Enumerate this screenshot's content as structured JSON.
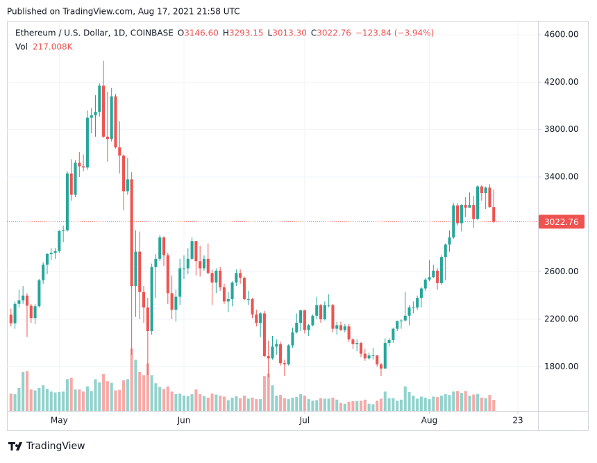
{
  "header": {
    "published": "Published on TradingView.com, Aug 17, 2021 21:58 UTC",
    "legend": [
      {
        "key": "O",
        "value": "3146.60"
      },
      {
        "key": "H",
        "value": "3293.15"
      },
      {
        "key": "L",
        "value": "3013.30"
      },
      {
        "key": "C",
        "value": "3022.76"
      }
    ],
    "change": "−123.84 (−3.94%)",
    "vol_key": "Vol",
    "vol_value": "217.008K"
  },
  "footer": {
    "brand": "TradingView"
  },
  "chart_data": {
    "type": "candlestick",
    "title": "Ethereum / U.S. Dollar, 1D, COINBASE",
    "up_color": "#26a69a",
    "down_color": "#ef5350",
    "grid": true,
    "x": [
      "2021-04-19",
      "2021-04-20",
      "2021-04-21",
      "2021-04-22",
      "2021-04-23",
      "2021-04-24",
      "2021-04-25",
      "2021-04-26",
      "2021-04-27",
      "2021-04-28",
      "2021-04-29",
      "2021-04-30",
      "2021-05-01",
      "2021-05-02",
      "2021-05-03",
      "2021-05-04",
      "2021-05-05",
      "2021-05-06",
      "2021-05-07",
      "2021-05-08",
      "2021-05-09",
      "2021-05-10",
      "2021-05-11",
      "2021-05-12",
      "2021-05-13",
      "2021-05-14",
      "2021-05-15",
      "2021-05-16",
      "2021-05-17",
      "2021-05-18",
      "2021-05-19",
      "2021-05-20",
      "2021-05-21",
      "2021-05-22",
      "2021-05-23",
      "2021-05-24",
      "2021-05-25",
      "2021-05-26",
      "2021-05-27",
      "2021-05-28",
      "2021-05-29",
      "2021-05-30",
      "2021-05-31",
      "2021-06-01",
      "2021-06-02",
      "2021-06-03",
      "2021-06-04",
      "2021-06-05",
      "2021-06-06",
      "2021-06-07",
      "2021-06-08",
      "2021-06-09",
      "2021-06-10",
      "2021-06-11",
      "2021-06-12",
      "2021-06-13",
      "2021-06-14",
      "2021-06-15",
      "2021-06-16",
      "2021-06-17",
      "2021-06-18",
      "2021-06-19",
      "2021-06-20",
      "2021-06-21",
      "2021-06-22",
      "2021-06-23",
      "2021-06-24",
      "2021-06-25",
      "2021-06-26",
      "2021-06-27",
      "2021-06-28",
      "2021-06-29",
      "2021-06-30",
      "2021-07-01",
      "2021-07-02",
      "2021-07-03",
      "2021-07-04",
      "2021-07-05",
      "2021-07-06",
      "2021-07-07",
      "2021-07-08",
      "2021-07-09",
      "2021-07-10",
      "2021-07-11",
      "2021-07-12",
      "2021-07-13",
      "2021-07-14",
      "2021-07-15",
      "2021-07-16",
      "2021-07-17",
      "2021-07-18",
      "2021-07-19",
      "2021-07-20",
      "2021-07-21",
      "2021-07-22",
      "2021-07-23",
      "2021-07-24",
      "2021-07-25",
      "2021-07-26",
      "2021-07-27",
      "2021-07-28",
      "2021-07-29",
      "2021-07-30",
      "2021-07-31",
      "2021-08-01",
      "2021-08-02",
      "2021-08-03",
      "2021-08-04",
      "2021-08-05",
      "2021-08-06",
      "2021-08-07",
      "2021-08-08",
      "2021-08-09",
      "2021-08-10",
      "2021-08-11",
      "2021-08-12",
      "2021-08-13",
      "2021-08-14",
      "2021-08-15",
      "2021-08-16",
      "2021-08-17"
    ],
    "open": [
      2238,
      2166,
      2330,
      2360,
      2400,
      2315,
      2210,
      2310,
      2530,
      2660,
      2750,
      2760,
      2775,
      2945,
      2950,
      3430,
      3250,
      3520,
      3490,
      3480,
      3900,
      3920,
      3950,
      4170,
      3740,
      3720,
      4080,
      3650,
      3580,
      3280,
      3380,
      2480,
      2770,
      2430,
      2300,
      2100,
      2640,
      2710,
      2890,
      2740,
      2420,
      2280,
      2390,
      2630,
      2630,
      2710,
      2860,
      2690,
      2630,
      2710,
      2590,
      2510,
      2610,
      2470,
      2350,
      2370,
      2510,
      2590,
      2550,
      2370,
      2370,
      2240,
      2170,
      2250,
      1890,
      1870,
      1970,
      1990,
      1830,
      1820,
      1980,
      2090,
      2170,
      2275,
      2110,
      2150,
      2230,
      2320,
      2200,
      2320,
      2320,
      2120,
      2150,
      2110,
      2140,
      2030,
      1990,
      2000,
      1910,
      1870,
      1895,
      1895,
      1820,
      1785,
      2000,
      2025,
      2120,
      2185,
      2190,
      2230,
      2300,
      2300,
      2380,
      2460,
      2535,
      2555,
      2610,
      2505,
      2725,
      2830,
      2890,
      3160,
      3010,
      3165,
      3140,
      3165,
      3045,
      3320,
      3265,
      3310,
      3146.6
    ],
    "high": [
      2290,
      2350,
      2450,
      2480,
      2420,
      2330,
      2330,
      2540,
      2680,
      2760,
      2800,
      2800,
      2950,
      2990,
      3450,
      3550,
      3540,
      3610,
      3590,
      3960,
      3980,
      4090,
      4190,
      4380,
      4120,
      4150,
      4100,
      3870,
      3590,
      3560,
      3440,
      2950,
      2940,
      2480,
      2380,
      2670,
      2750,
      2910,
      2900,
      2760,
      2570,
      2450,
      2710,
      2740,
      2800,
      2890,
      2860,
      2820,
      2740,
      2840,
      2620,
      2630,
      2640,
      2500,
      2430,
      2520,
      2620,
      2620,
      2560,
      2440,
      2380,
      2280,
      2260,
      2270,
      2020,
      2060,
      2030,
      2010,
      1860,
      1990,
      2130,
      2250,
      2280,
      2280,
      2160,
      2240,
      2390,
      2330,
      2350,
      2410,
      2330,
      2180,
      2180,
      2160,
      2160,
      2040,
      2030,
      2010,
      1950,
      1920,
      1960,
      1900,
      1830,
      2040,
      2040,
      2130,
      2190,
      2200,
      2430,
      2320,
      2350,
      2400,
      2470,
      2550,
      2700,
      2660,
      2630,
      2740,
      2840,
      2950,
      3180,
      3180,
      3170,
      3230,
      3270,
      3240,
      3330,
      3330,
      3320,
      3340,
      3293.15
    ],
    "low": [
      2140,
      2120,
      2300,
      2330,
      2050,
      2170,
      2160,
      2300,
      2500,
      2580,
      2700,
      2710,
      2760,
      2850,
      2940,
      3200,
      3230,
      3400,
      3450,
      3460,
      3770,
      3740,
      3910,
      3730,
      3530,
      3700,
      3640,
      3430,
      3120,
      3250,
      1900,
      2220,
      2200,
      2170,
      1730,
      2070,
      2380,
      2690,
      2650,
      2330,
      2200,
      2180,
      2320,
      2540,
      2580,
      2700,
      2570,
      2560,
      2610,
      2580,
      2320,
      2420,
      2440,
      2330,
      2260,
      2310,
      2480,
      2500,
      2360,
      2320,
      2210,
      2140,
      2050,
      1880,
      1710,
      1860,
      1900,
      1810,
      1720,
      1810,
      1960,
      2080,
      2100,
      2080,
      2060,
      2140,
      2200,
      2170,
      2190,
      2300,
      2090,
      2070,
      2100,
      2090,
      2010,
      1950,
      1930,
      1880,
      1850,
      1860,
      1860,
      1800,
      1720,
      1780,
      1970,
      2000,
      2100,
      2120,
      2180,
      2150,
      2250,
      2280,
      2300,
      2440,
      2520,
      2550,
      2450,
      2490,
      2530,
      2770,
      2880,
      2990,
      2940,
      3060,
      3140,
      2970,
      3040,
      3200,
      3130,
      3140,
      3013.3
    ],
    "close": [
      2166,
      2330,
      2360,
      2400,
      2315,
      2210,
      2310,
      2530,
      2660,
      2750,
      2760,
      2775,
      2945,
      2950,
      3430,
      3250,
      3520,
      3490,
      3480,
      3900,
      3920,
      3950,
      4170,
      3740,
      3720,
      4080,
      3650,
      3580,
      3280,
      3380,
      2480,
      2770,
      2430,
      2300,
      2100,
      2640,
      2710,
      2890,
      2740,
      2420,
      2280,
      2390,
      2630,
      2630,
      2710,
      2860,
      2690,
      2630,
      2710,
      2590,
      2510,
      2610,
      2470,
      2350,
      2370,
      2510,
      2590,
      2550,
      2370,
      2370,
      2240,
      2170,
      2250,
      1890,
      1870,
      1970,
      1990,
      1830,
      1820,
      1980,
      2090,
      2170,
      2275,
      2110,
      2150,
      2230,
      2320,
      2200,
      2320,
      2320,
      2120,
      2150,
      2110,
      2140,
      2030,
      1990,
      2000,
      1910,
      1870,
      1895,
      1895,
      1820,
      1785,
      2000,
      2025,
      2120,
      2185,
      2190,
      2230,
      2300,
      2300,
      2380,
      2460,
      2535,
      2555,
      2610,
      2505,
      2725,
      2830,
      2890,
      3160,
      3010,
      3165,
      3140,
      3165,
      3045,
      3320,
      3265,
      3310,
      3146.6,
      3022.76
    ],
    "volume": [
      340000,
      330000,
      450000,
      760000,
      780000,
      420000,
      400000,
      450000,
      500000,
      430000,
      380000,
      360000,
      370000,
      380000,
      620000,
      650000,
      420000,
      420000,
      380000,
      480000,
      390000,
      620000,
      560000,
      720000,
      580000,
      550000,
      400000,
      410000,
      600000,
      620000,
      1220000,
      1000000,
      760000,
      700000,
      930000,
      700000,
      540000,
      470000,
      430000,
      480000,
      380000,
      330000,
      340000,
      300000,
      290000,
      330000,
      420000,
      330000,
      290000,
      260000,
      340000,
      320000,
      300000,
      280000,
      210000,
      260000,
      290000,
      250000,
      300000,
      240000,
      260000,
      230000,
      230000,
      680000,
      730000,
      500000,
      300000,
      310000,
      250000,
      230000,
      260000,
      270000,
      330000,
      300000,
      230000,
      200000,
      210000,
      250000,
      240000,
      240000,
      260000,
      220000,
      160000,
      140000,
      180000,
      190000,
      190000,
      200000,
      220000,
      140000,
      130000,
      200000,
      240000,
      380000,
      250000,
      250000,
      200000,
      220000,
      480000,
      370000,
      300000,
      240000,
      280000,
      260000,
      230000,
      280000,
      270000,
      300000,
      330000,
      310000,
      380000,
      390000,
      350000,
      390000,
      300000,
      320000,
      330000,
      260000,
      250000,
      310000,
      217008
    ],
    "xlim": [
      "2021-04-18",
      "2021-08-28"
    ],
    "xticks": [
      {
        "value": "2021-05-01",
        "label": "May"
      },
      {
        "value": "2021-06-01",
        "label": "Jun"
      },
      {
        "value": "2021-07-01",
        "label": "Jul"
      },
      {
        "value": "2021-08-01",
        "label": "Aug"
      },
      {
        "value": "2021-08-23",
        "label": "23"
      }
    ],
    "ylim": [
      1427,
      4717
    ],
    "yticks": [
      {
        "value": 1800,
        "label": "1800.00"
      },
      {
        "value": 2200,
        "label": "2200.00"
      },
      {
        "value": 2600,
        "label": "2600.00"
      },
      {
        "value": 3400,
        "label": "3400.00"
      },
      {
        "value": 3800,
        "label": "3800.00"
      },
      {
        "value": 4200,
        "label": "4200.00"
      },
      {
        "value": 4600,
        "label": "4600.00"
      }
    ]
  }
}
